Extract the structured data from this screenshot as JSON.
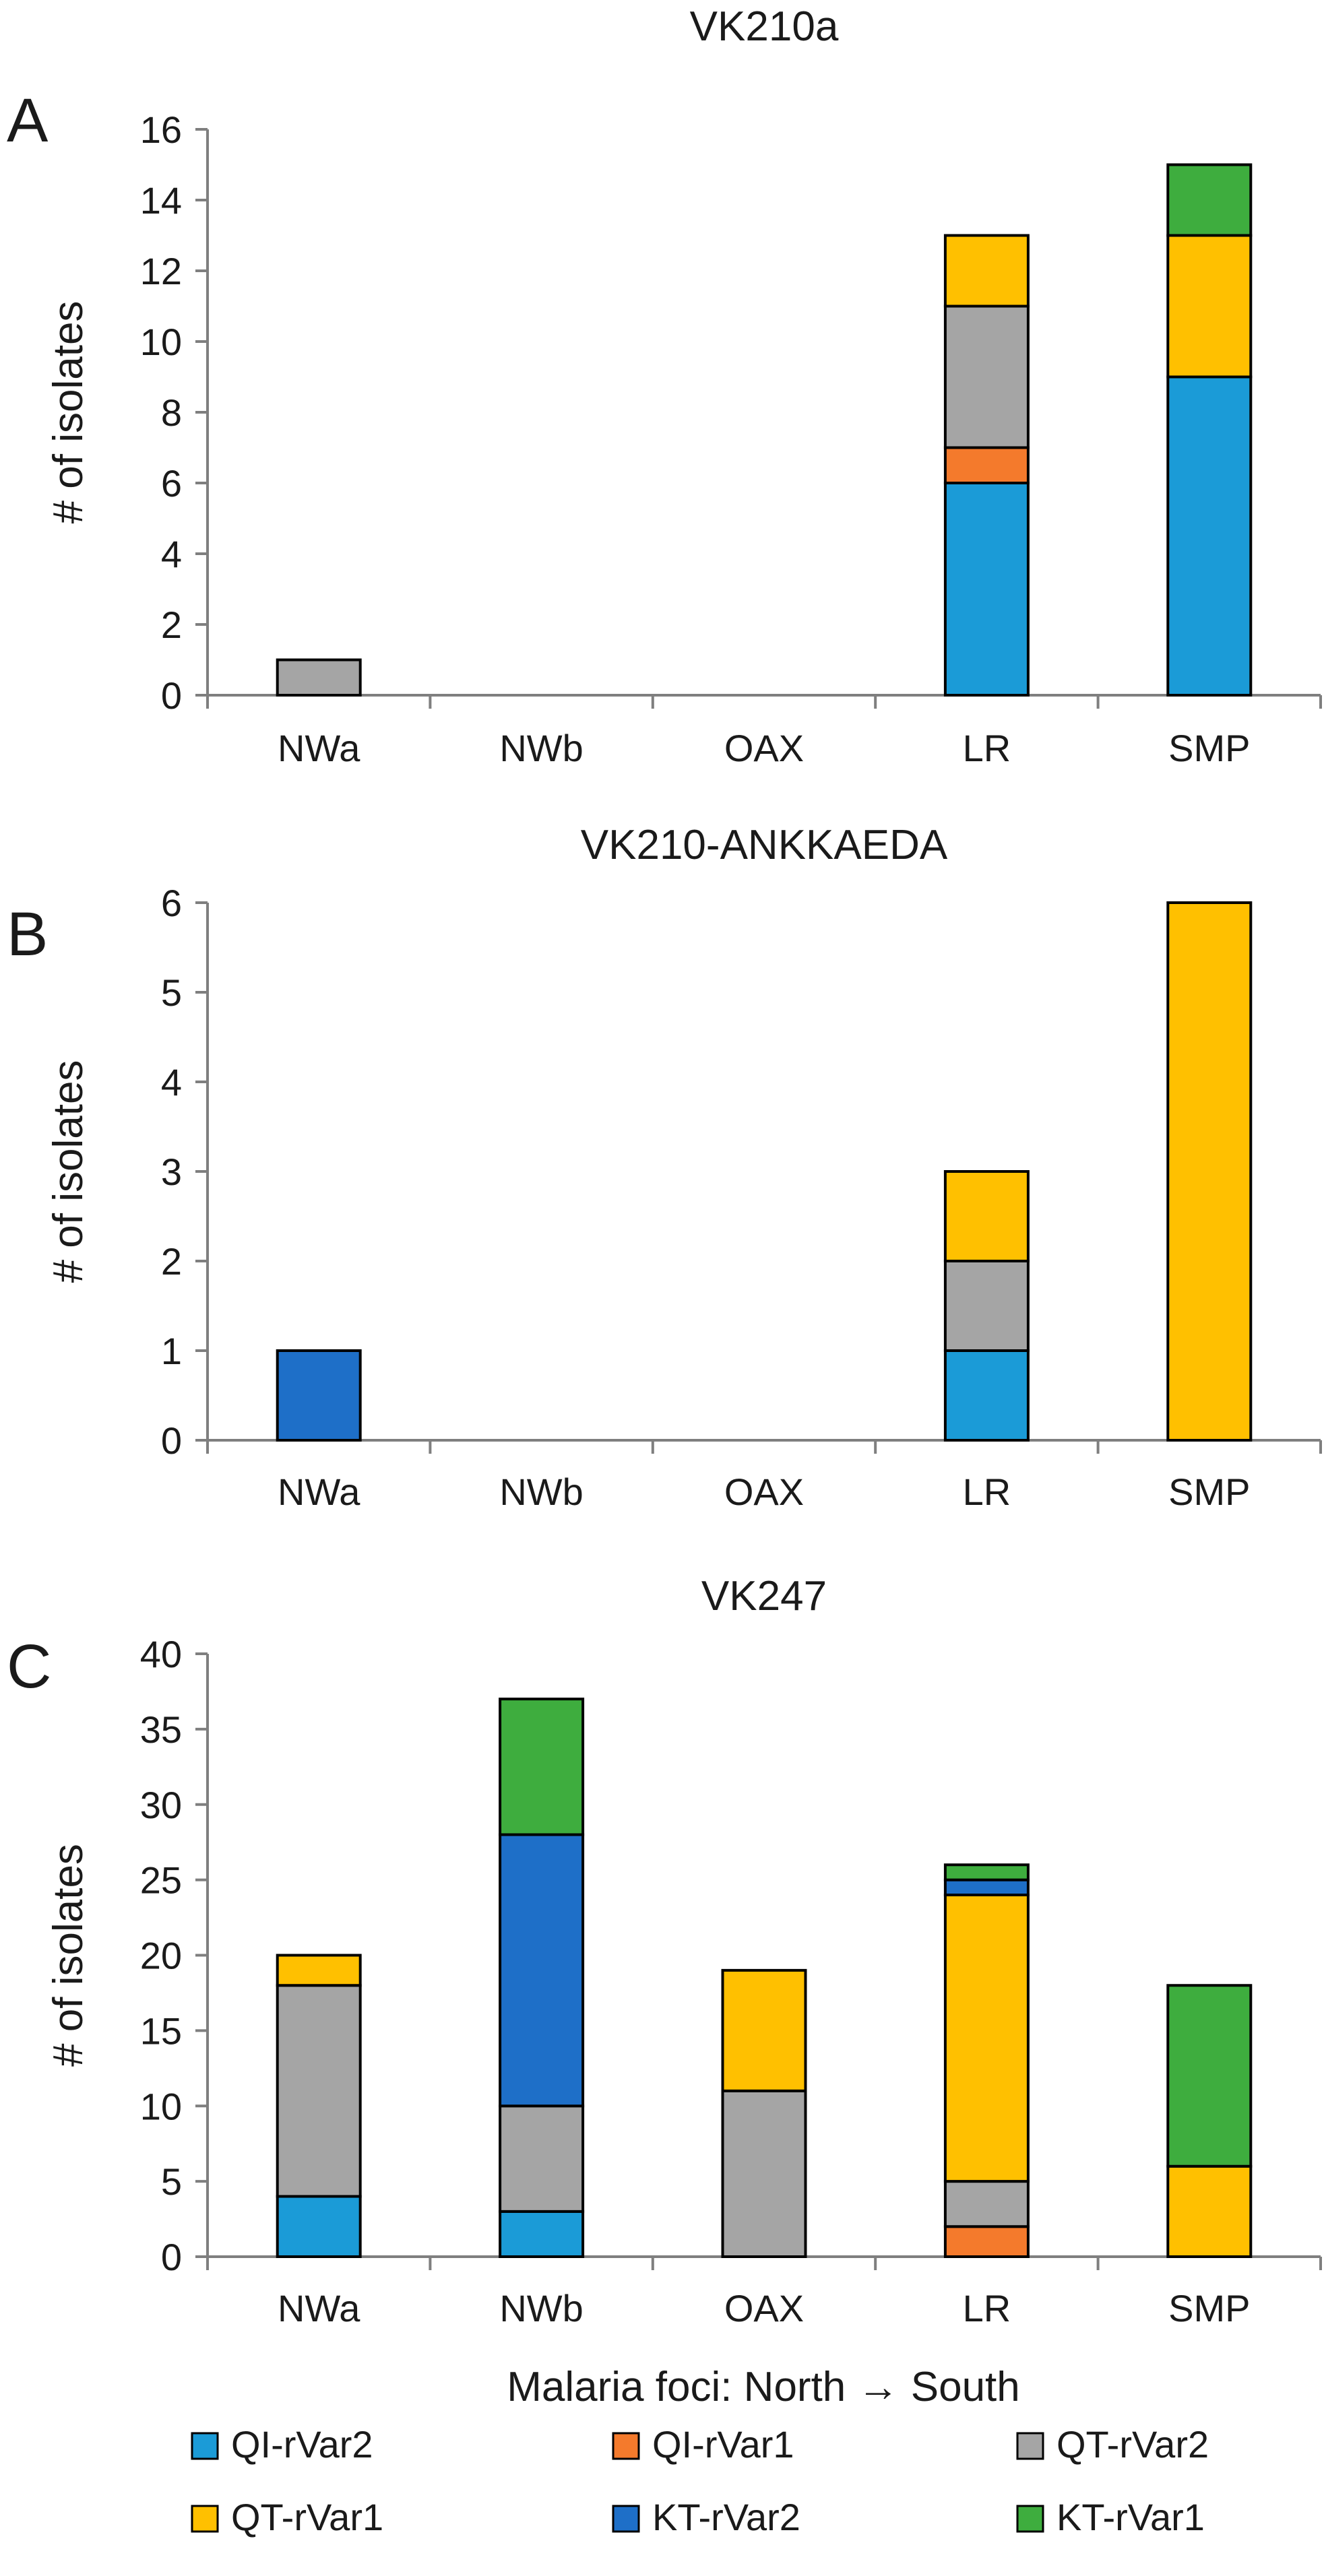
{
  "colors": {
    "QI-rVar2": "#1B9BD7",
    "QI-rVar1": "#F47A2C",
    "QT-rVar2": "#A5A5A5",
    "QT-rVar1": "#FFC000",
    "KT-rVar2": "#1E6FC8",
    "KT-rVar1": "#3EAD3E"
  },
  "xlabel": "Malaria foci: North → South",
  "legend": {
    "position": "bottom",
    "items": [
      "QI-rVar2",
      "QI-rVar1",
      "QT-rVar2",
      "QT-rVar1",
      "KT-rVar2",
      "KT-rVar1"
    ]
  },
  "chart_data": [
    {
      "panel": "A",
      "type": "bar",
      "stacked": true,
      "title": "VK210a",
      "ylabel": "# of isolates",
      "ylim": [
        0,
        16
      ],
      "yticks": [
        0,
        2,
        4,
        6,
        8,
        10,
        12,
        14,
        16
      ],
      "categories": [
        "NWa",
        "NWb",
        "OAX",
        "LR",
        "SMP"
      ],
      "series": [
        {
          "name": "QI-rVar2",
          "values": [
            0,
            0,
            0,
            6,
            9
          ]
        },
        {
          "name": "QI-rVar1",
          "values": [
            0,
            0,
            0,
            1,
            0
          ]
        },
        {
          "name": "QT-rVar2",
          "values": [
            1,
            0,
            0,
            4,
            0
          ]
        },
        {
          "name": "QT-rVar1",
          "values": [
            0,
            0,
            0,
            2,
            4
          ]
        },
        {
          "name": "KT-rVar2",
          "values": [
            0,
            0,
            0,
            0,
            0
          ]
        },
        {
          "name": "KT-rVar1",
          "values": [
            0,
            0,
            0,
            0,
            2
          ]
        }
      ]
    },
    {
      "panel": "B",
      "type": "bar",
      "stacked": true,
      "title": "VK210-ANKKAEDA",
      "ylabel": "# of isolates",
      "ylim": [
        0,
        6
      ],
      "yticks": [
        0,
        1,
        2,
        3,
        4,
        5,
        6
      ],
      "categories": [
        "NWa",
        "NWb",
        "OAX",
        "LR",
        "SMP"
      ],
      "series": [
        {
          "name": "QI-rVar2",
          "values": [
            0,
            0,
            0,
            1,
            0
          ]
        },
        {
          "name": "QI-rVar1",
          "values": [
            0,
            0,
            0,
            0,
            0
          ]
        },
        {
          "name": "QT-rVar2",
          "values": [
            0,
            0,
            0,
            1,
            0
          ]
        },
        {
          "name": "QT-rVar1",
          "values": [
            0,
            0,
            0,
            1,
            6
          ]
        },
        {
          "name": "KT-rVar2",
          "values": [
            1,
            0,
            0,
            0,
            0
          ]
        },
        {
          "name": "KT-rVar1",
          "values": [
            0,
            0,
            0,
            0,
            0
          ]
        }
      ]
    },
    {
      "panel": "C",
      "type": "bar",
      "stacked": true,
      "title": "VK247",
      "ylabel": "# of isolates",
      "ylim": [
        0,
        40
      ],
      "yticks": [
        0,
        5,
        10,
        15,
        20,
        25,
        30,
        35,
        40
      ],
      "categories": [
        "NWa",
        "NWb",
        "OAX",
        "LR",
        "SMP"
      ],
      "series": [
        {
          "name": "QI-rVar2",
          "values": [
            4,
            3,
            0,
            0,
            0
          ]
        },
        {
          "name": "QI-rVar1",
          "values": [
            0,
            0,
            0,
            2,
            0
          ]
        },
        {
          "name": "QT-rVar2",
          "values": [
            14,
            7,
            11,
            3,
            0
          ]
        },
        {
          "name": "QT-rVar1",
          "values": [
            2,
            0,
            8,
            19,
            6
          ]
        },
        {
          "name": "KT-rVar2",
          "values": [
            0,
            18,
            0,
            1,
            0
          ]
        },
        {
          "name": "KT-rVar1",
          "values": [
            0,
            9,
            0,
            1,
            12
          ]
        }
      ]
    }
  ]
}
